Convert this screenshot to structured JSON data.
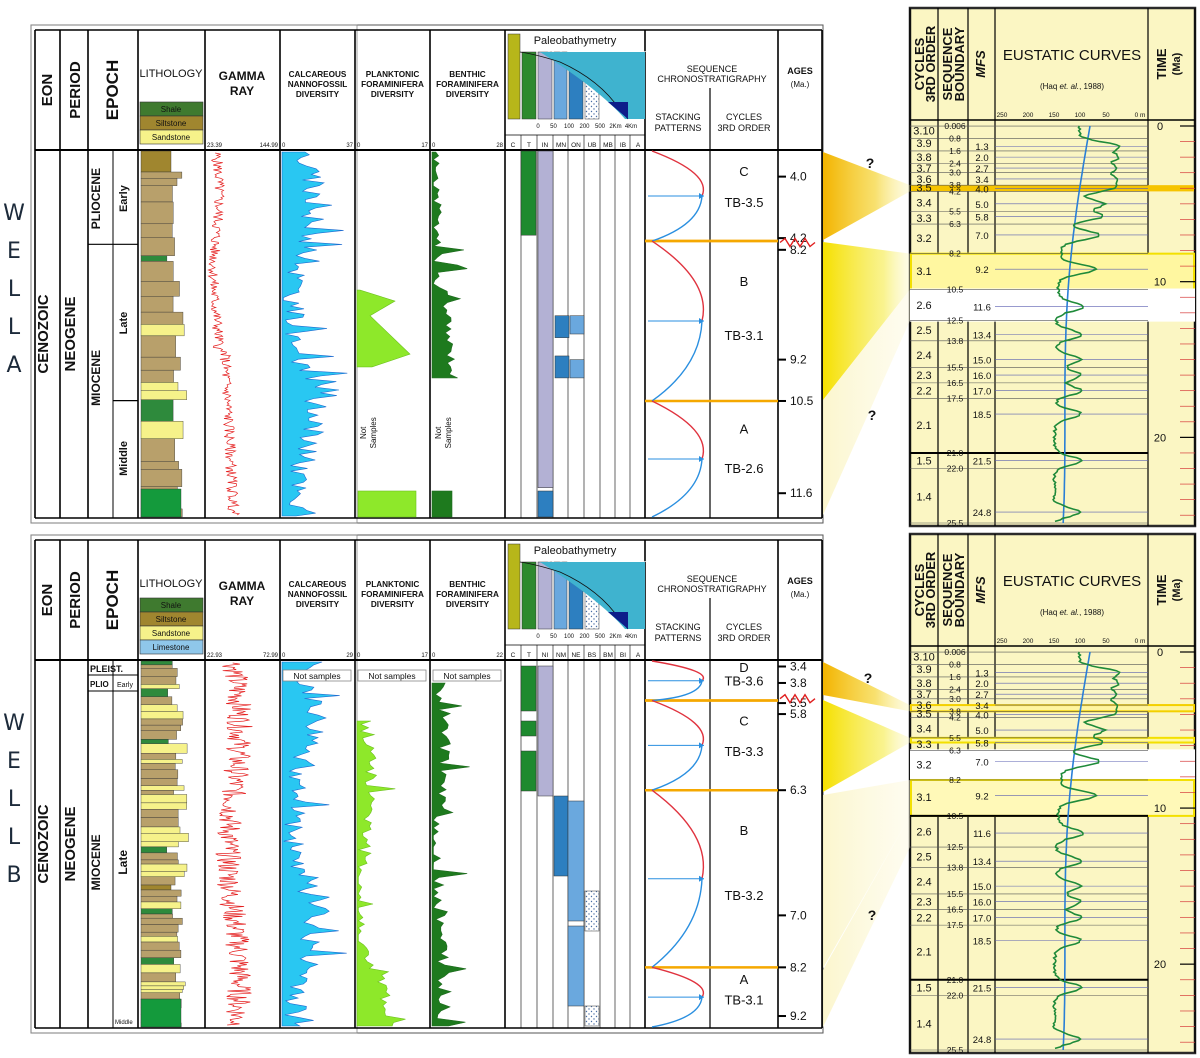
{
  "wells": [
    {
      "well_label": [
        "W",
        "E",
        "L",
        "L",
        "A"
      ],
      "headers": {
        "eon": "EON",
        "period": "PERIOD",
        "epoch": "EPOCH",
        "lithology": "LITHOLOGY",
        "gamma": [
          "GAMMA",
          "RAY"
        ],
        "nanno": [
          "CALCAREOUS",
          "NANNOFOSSIL",
          "DIVERSITY"
        ],
        "plank": [
          "PLANKTONIC",
          "FORAMINIFERA",
          "DIVERSITY"
        ],
        "benth": [
          "BENTHIC",
          "FORAMINIFERA",
          "DIVERSITY"
        ],
        "paleo": "Paleobathymetry",
        "seq": [
          "SEQUENCE",
          "CHRONOSTRATIGRAPHY"
        ],
        "stacking": [
          "STACKING",
          "PATTERNS"
        ],
        "cycles": [
          "CYCLES",
          "3RD ORDER"
        ],
        "ages": [
          "AGES",
          "(Ma.)"
        ]
      },
      "lith_legend": [
        {
          "label": "Shale",
          "color": "#3f7a2f"
        },
        {
          "label": "Siltstone",
          "color": "#a0862f"
        },
        {
          "label": "Sandstone",
          "color": "#f6f28a"
        }
      ],
      "gamma_scale": [
        "23.39",
        "144.99"
      ],
      "nanno_scale": [
        "0",
        "37"
      ],
      "plank_scale": [
        "0",
        "17"
      ],
      "benth_scale": [
        "0",
        "28"
      ],
      "depth_scale": [
        "0",
        "50",
        "100",
        "200",
        "500",
        "2Km",
        "4Km"
      ],
      "zone_codes": [
        "C",
        "T",
        "IN",
        "MN",
        "ON",
        "UB",
        "MB",
        "IB",
        "A"
      ],
      "eon": "CENOZOIC",
      "period": "NEOGENE",
      "epochs": [
        {
          "name": "PLIOCENE",
          "sub": [
            {
              "name": "Early",
              "y0": 0,
              "y1": 0.255
            }
          ]
        },
        {
          "name": "MIOCENE",
          "sub": [
            {
              "name": "Late",
              "y0": 0.255,
              "y1": 0.682
            },
            {
              "name": "Middle",
              "y0": 0.682,
              "y1": 1
            }
          ]
        }
      ],
      "not_samples": [
        "Not",
        "Samples"
      ],
      "sequences": [
        {
          "letter": "C",
          "code": "TB-3.5"
        },
        {
          "letter": "B",
          "code": "TB-3.1"
        },
        {
          "letter": "A",
          "code": "TB-2.6"
        }
      ],
      "ages": [
        "4.0",
        "4.2",
        "8.2",
        "9.2",
        "10.5",
        "11.6"
      ],
      "question_marks": [
        "?",
        "?"
      ]
    },
    {
      "well_label": [
        "W",
        "E",
        "L",
        "L",
        "B"
      ],
      "headers": {
        "eon": "EON",
        "period": "PERIOD",
        "epoch": "EPOCH",
        "lithology": "LITHOLOGY",
        "gamma": [
          "GAMMA",
          "RAY"
        ],
        "nanno": [
          "CALCAREOUS",
          "NANNOFOSSIL",
          "DIVERSITY"
        ],
        "plank": [
          "PLANKTONIC",
          "FORAMINIFERA",
          "DIVERSITY"
        ],
        "benth": [
          "BENTHIC",
          "FORAMINIFERA",
          "DIVERSITY"
        ],
        "paleo": "Paleobathymetry",
        "seq": [
          "SEQUENCE",
          "CHRONOSTRATIGRAPHY"
        ],
        "stacking": [
          "STACKING",
          "PATTERNS"
        ],
        "cycles": [
          "CYCLES",
          "3RD ORDER"
        ],
        "ages": [
          "AGES",
          "(Ma.)"
        ]
      },
      "lith_legend": [
        {
          "label": "Shale",
          "color": "#3f7a2f"
        },
        {
          "label": "Siltstone",
          "color": "#a0862f"
        },
        {
          "label": "Sandstone",
          "color": "#f6f28a"
        },
        {
          "label": "Limestone",
          "color": "#8fc7ea"
        }
      ],
      "gamma_scale": [
        "22.93",
        "72.99"
      ],
      "nanno_scale": [
        "0",
        "29"
      ],
      "plank_scale": [
        "0",
        "17"
      ],
      "benth_scale": [
        "0",
        "22"
      ],
      "depth_scale": [
        "0",
        "50",
        "100",
        "200",
        "500",
        "2Km",
        "4Km"
      ],
      "zone_codes": [
        "C",
        "T",
        "NI",
        "NM",
        "NE",
        "BS",
        "BM",
        "BI",
        "A"
      ],
      "eon": "CENOZOIC",
      "period": "NEOGENE",
      "epochs": [
        {
          "name": "PLEIST.",
          "sub": []
        },
        {
          "name": "PLIO",
          "sub": [
            {
              "name": "Early"
            }
          ]
        },
        {
          "name": "MIOCENE",
          "sub": [
            {
              "name": "Late"
            },
            {
              "name": "Middle"
            }
          ]
        }
      ],
      "not_samples_single": "Not samples",
      "sequences": [
        {
          "letter": "D",
          "code": "TB-3.6"
        },
        {
          "letter": "C",
          "code": "TB-3.3"
        },
        {
          "letter": "B",
          "code": "TB-3.2"
        },
        {
          "letter": "A",
          "code": "TB-3.1"
        }
      ],
      "ages": [
        "3.4",
        "3.8",
        "5.5",
        "5.8",
        "6.3",
        "7.0",
        "8.2",
        "9.2"
      ],
      "question_marks": [
        "?",
        "?"
      ]
    }
  ],
  "eustatic": {
    "headers": {
      "cycles": [
        "CYCLES",
        "3RD ORDER"
      ],
      "seqb": [
        "SEQUENCE",
        "BOUNDARY"
      ],
      "mfs": "MFS",
      "title": "EUSTATIC CURVES",
      "subtitle_pre": "(Haq ",
      "subtitle_italic": "et. al.",
      "subtitle_post": ", 1988)",
      "time": [
        "TIME",
        "(Ma)"
      ]
    },
    "sealevel_ticks": [
      "250",
      "200",
      "150",
      "100",
      "50",
      "0 m"
    ],
    "time_ticks": [
      "0",
      "10",
      "20"
    ],
    "cycles": [
      "3.10",
      "3.9",
      "3.8",
      "3.7",
      "3.6",
      "3.5",
      "3.4",
      "3.3",
      "3.2",
      "3.1",
      "2.6",
      "2.5",
      "2.4",
      "2.3",
      "2.2",
      "2.1",
      "1.5",
      "1.4"
    ],
    "sb_ages": [
      "0.006",
      "0.8",
      "1.6",
      "2.4",
      "3.0",
      "3.8",
      "4.2",
      "5.5",
      "6.3",
      "8.2",
      "10.5",
      "12.5",
      "13.8",
      "15.5",
      "16.5",
      "17.5",
      "21.0",
      "22.0",
      "25.5"
    ],
    "mfs_ages": [
      "1.3",
      "2.0",
      "2.7",
      "3.4",
      "4.0",
      "5.0",
      "5.8",
      "7.0",
      "9.2",
      "11.6",
      "13.4",
      "15.0",
      "16.0",
      "17.0",
      "18.5",
      "21.5",
      "24.8"
    ]
  }
}
